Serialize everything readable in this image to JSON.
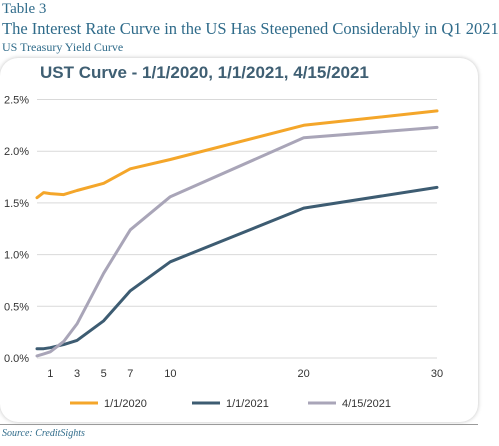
{
  "header": {
    "table_label": "Table 3",
    "title": "The Interest Rate Curve in the US Has Steepened Considerably in Q1 2021",
    "subtitle": "US Treasury Yield Curve"
  },
  "source": "Source:  CreditSights",
  "colors": {
    "title": "#2f6b8a",
    "chart_title": "#3f5f73",
    "axis_text": "#333333",
    "grid": "#d9d9d9"
  },
  "chart_data": {
    "type": "line",
    "title": "UST Curve - 1/1/2020, 1/1/2021, 4/15/2021",
    "xlabel": "",
    "ylabel": "",
    "xlim": [
      0,
      30
    ],
    "ylim": [
      0,
      2.5
    ],
    "x_ticks": [
      1,
      3,
      5,
      7,
      10,
      20,
      30
    ],
    "x_tick_labels": [
      "1",
      "3",
      "5",
      "7",
      "10",
      "20",
      "30"
    ],
    "y_ticks": [
      0,
      0.5,
      1.0,
      1.5,
      2.0,
      2.5
    ],
    "y_tick_labels": [
      "0.0%",
      "0.5%",
      "1.0%",
      "1.5%",
      "2.0%",
      "2.5%"
    ],
    "grid": "horizontal",
    "legend_position": "bottom",
    "series": [
      {
        "name": "1/1/2020",
        "color": "#f4a62a",
        "points": [
          [
            0,
            1.55
          ],
          [
            0.5,
            1.6
          ],
          [
            1,
            1.59
          ],
          [
            2,
            1.58
          ],
          [
            3,
            1.62
          ],
          [
            5,
            1.69
          ],
          [
            7,
            1.83
          ],
          [
            10,
            1.92
          ],
          [
            20,
            2.25
          ],
          [
            30,
            2.39
          ]
        ]
      },
      {
        "name": "1/1/2021",
        "color": "#3d5c72",
        "points": [
          [
            0,
            0.09
          ],
          [
            0.5,
            0.09
          ],
          [
            1,
            0.1
          ],
          [
            2,
            0.13
          ],
          [
            3,
            0.17
          ],
          [
            5,
            0.36
          ],
          [
            7,
            0.65
          ],
          [
            10,
            0.93
          ],
          [
            20,
            1.45
          ],
          [
            30,
            1.65
          ]
        ]
      },
      {
        "name": "4/15/2021",
        "color": "#a9a5b8",
        "points": [
          [
            0,
            0.02
          ],
          [
            0.5,
            0.04
          ],
          [
            1,
            0.06
          ],
          [
            2,
            0.16
          ],
          [
            3,
            0.33
          ],
          [
            5,
            0.82
          ],
          [
            7,
            1.24
          ],
          [
            10,
            1.56
          ],
          [
            20,
            2.13
          ],
          [
            30,
            2.23
          ]
        ]
      }
    ]
  }
}
